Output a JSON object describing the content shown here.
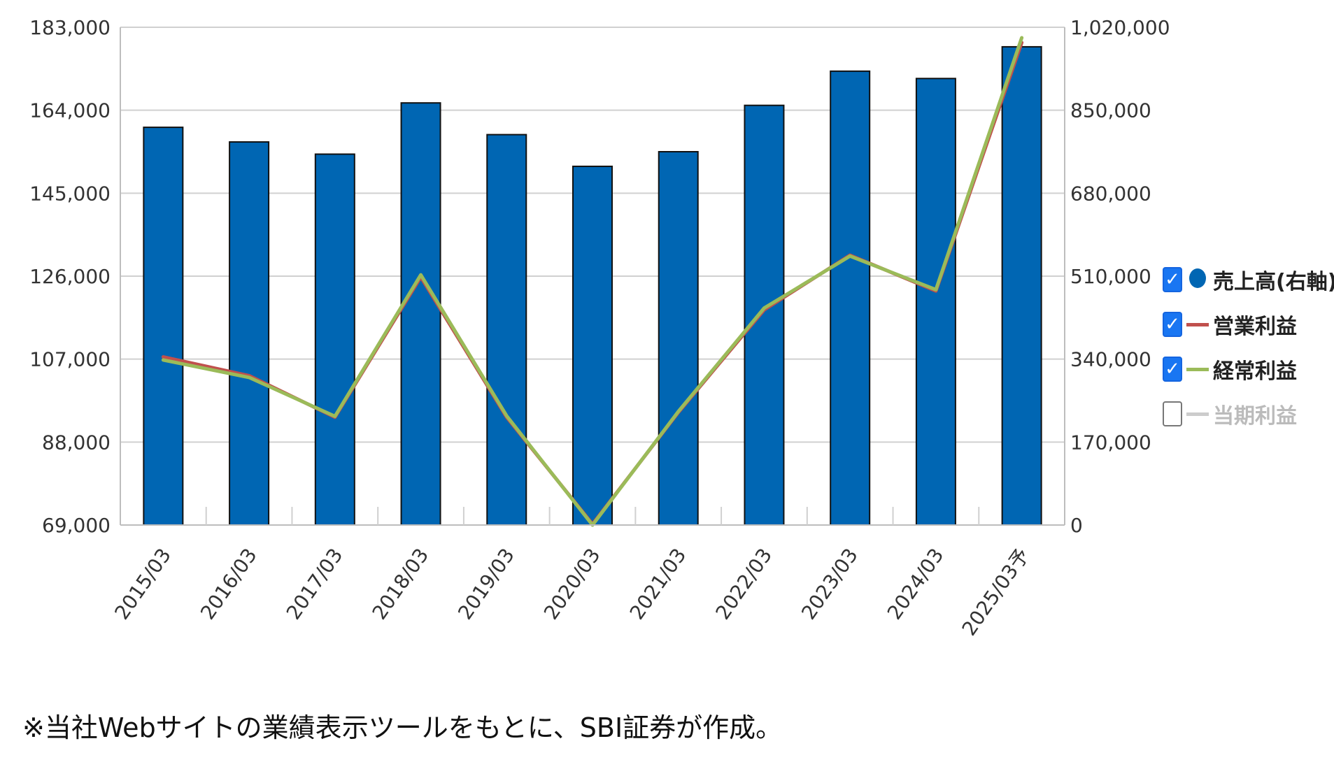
{
  "chart_data": {
    "type": "bar",
    "categories": [
      "2015/03",
      "2016/03",
      "2017/03",
      "2018/03",
      "2019/03",
      "2020/03",
      "2021/03",
      "2022/03",
      "2023/03",
      "2024/03",
      "2025/03予"
    ],
    "left_axis": {
      "ticks": [
        "183,000",
        "164,000",
        "145,000",
        "126,000",
        "107,000",
        "88,000",
        "69,000"
      ],
      "ylim": [
        69000,
        183000
      ]
    },
    "right_axis": {
      "ticks": [
        "1,020,000",
        "850,000",
        "680,000",
        "510,000",
        "340,000",
        "170,000",
        "0"
      ],
      "ylim": [
        0,
        1020000
      ]
    },
    "series": [
      {
        "name": "売上高(右軸)",
        "type": "bar",
        "axis": "right",
        "color": "#0066b3",
        "values": [
          815000,
          785000,
          760000,
          865000,
          800000,
          735000,
          765000,
          860000,
          930000,
          915000,
          980000
        ]
      },
      {
        "name": "営業利益",
        "type": "line",
        "axis": "left",
        "color": "#c0504d",
        "values": [
          107500,
          103200,
          93700,
          125800,
          93700,
          69200,
          94800,
          118300,
          130800,
          122600,
          179500
        ]
      },
      {
        "name": "経常利益",
        "type": "line",
        "axis": "left",
        "color": "#9bbb59",
        "values": [
          106800,
          102800,
          93900,
          126300,
          94000,
          69000,
          95000,
          118700,
          130600,
          122900,
          180600
        ]
      }
    ],
    "grid": true,
    "legend_position": "right"
  },
  "legend": {
    "items": [
      {
        "key": "sales",
        "label": "売上高(右軸)",
        "checked": true,
        "marker": "dot",
        "color": "#0066b3"
      },
      {
        "key": "operating",
        "label": "営業利益",
        "checked": true,
        "marker": "line",
        "color": "#c0504d"
      },
      {
        "key": "ordinary",
        "label": "経常利益",
        "checked": true,
        "marker": "line",
        "color": "#9bbb59"
      },
      {
        "key": "net",
        "label": "当期利益",
        "checked": false,
        "marker": "line",
        "color": "#cccccc"
      }
    ],
    "check_glyph": "✓"
  },
  "footnote": "※当社Webサイトの業績表示ツールをもとに、SBI証券が作成。"
}
